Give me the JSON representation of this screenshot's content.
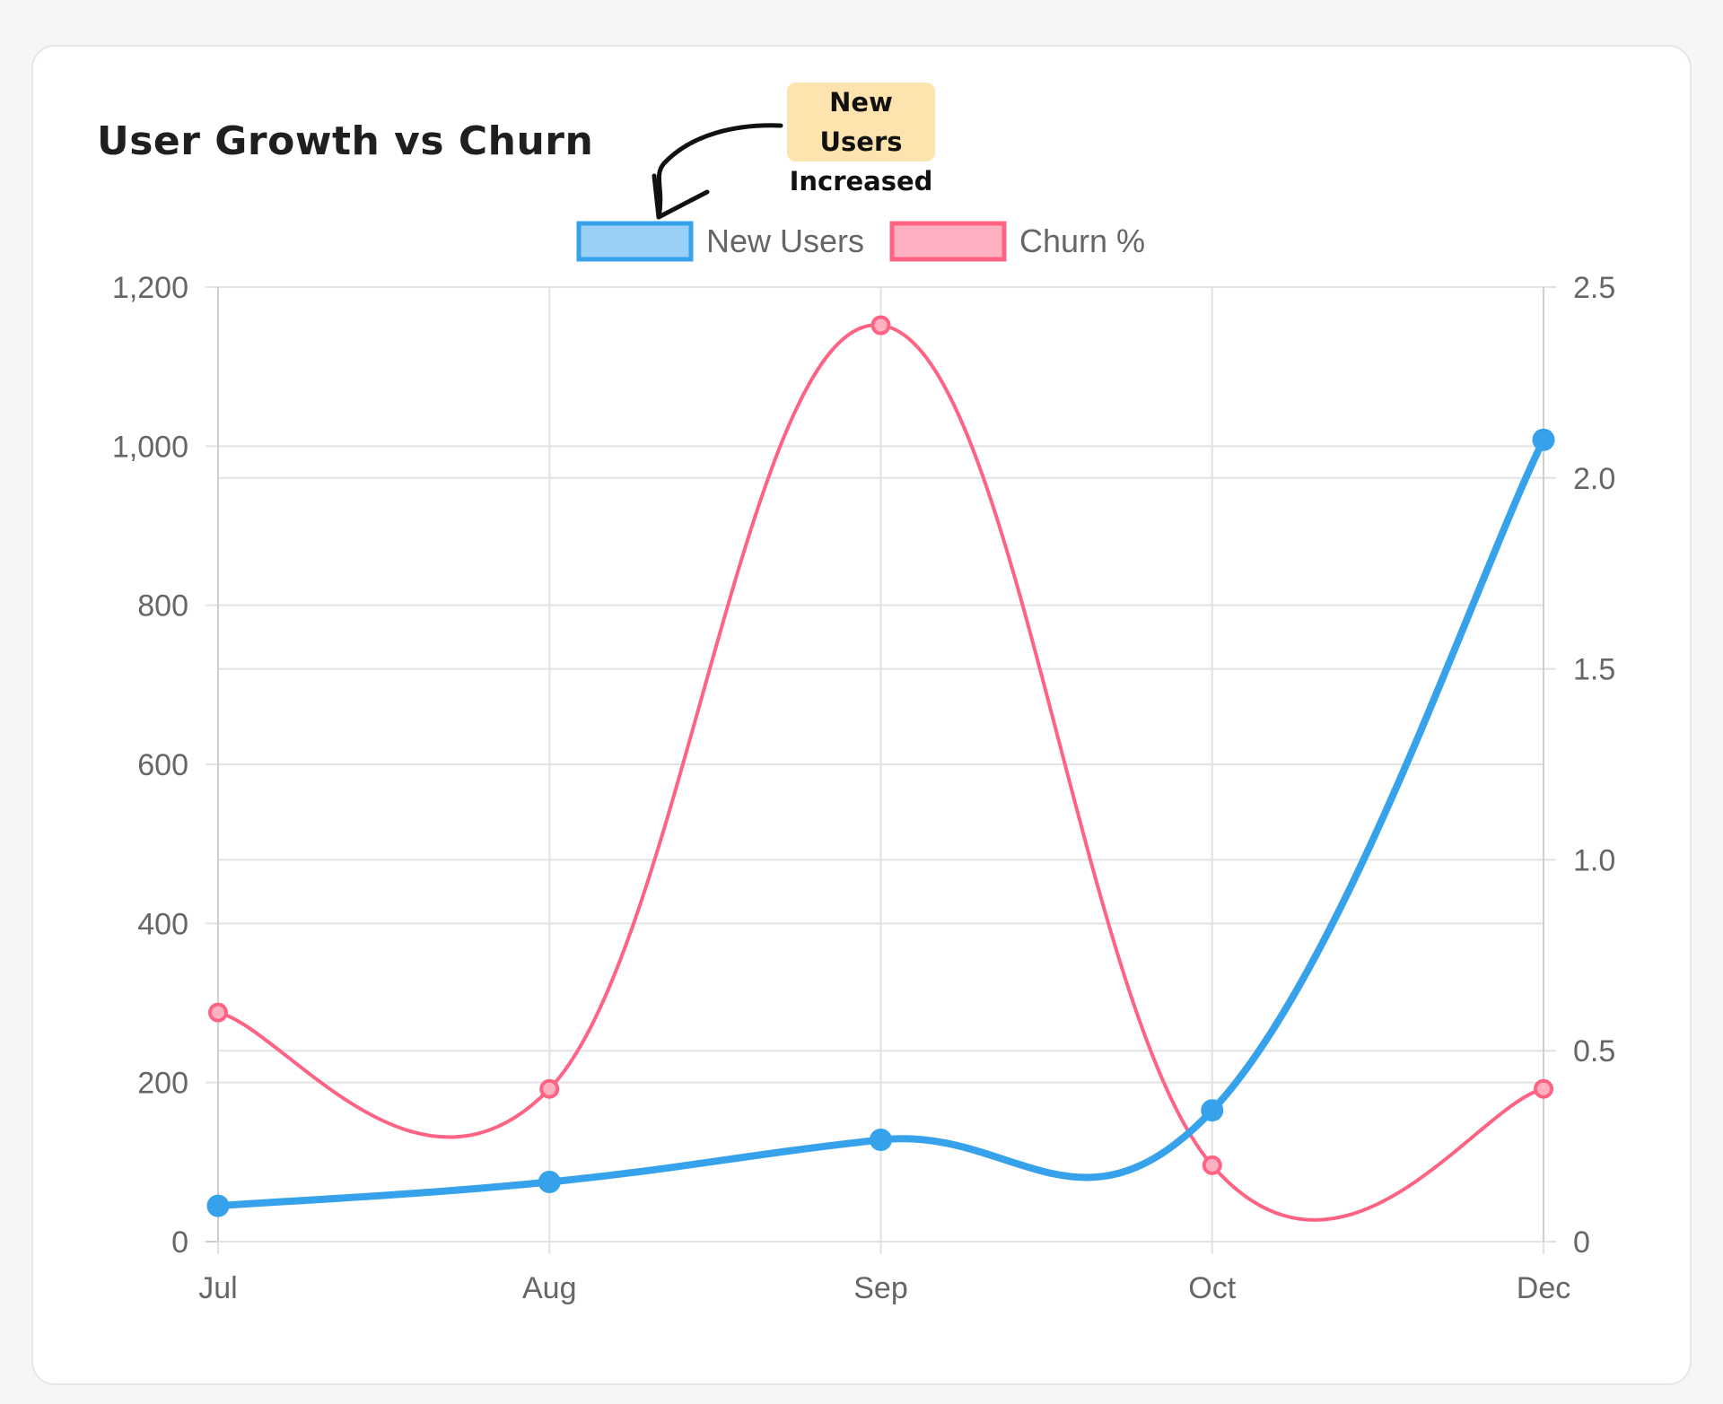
{
  "card": {
    "title": "User Growth vs Churn",
    "annotation": "New Users\nIncreased"
  },
  "chart_data": {
    "type": "line",
    "categories": [
      "Jul",
      "Aug",
      "Sep",
      "Oct",
      "Dec"
    ],
    "series": [
      {
        "name": "New Users",
        "axis": "left",
        "values": [
          45,
          75,
          128,
          165,
          1008
        ],
        "color": "#36a2eb",
        "fill": "#9ad0f5"
      },
      {
        "name": "Churn %",
        "axis": "right",
        "values": [
          0.6,
          0.4,
          2.4,
          0.2,
          0.4
        ],
        "color": "#ff6384",
        "fill": "#ffb1c1"
      }
    ],
    "y_left": {
      "min": 0,
      "max": 1200,
      "ticks": [
        "0",
        "200",
        "400",
        "600",
        "800",
        "1,000",
        "1,200"
      ]
    },
    "y_right": {
      "min": 0,
      "max": 2.5,
      "ticks": [
        "0",
        "0.5",
        "1.0",
        "1.5",
        "2.0",
        "2.5"
      ]
    },
    "grid": true,
    "legend_position": "top"
  }
}
